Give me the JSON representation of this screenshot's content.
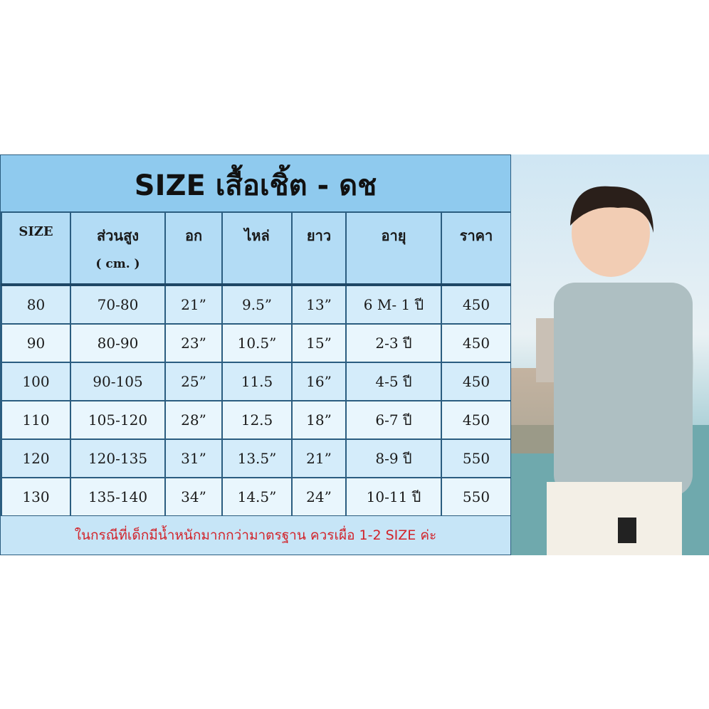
{
  "title": "SIZE เสื้อเชิ้ต - ดช",
  "headers": [
    {
      "label": "SIZE"
    },
    {
      "label": "ส่วนสูง",
      "sub": "( cm. )"
    },
    {
      "label": "อก"
    },
    {
      "label": "ไหล่"
    },
    {
      "label": "ยาว"
    },
    {
      "label": "อายุ"
    },
    {
      "label": "ราคา"
    }
  ],
  "rows": [
    [
      "80",
      "70-80",
      "21”",
      "9.5”",
      "13”",
      "6 M- 1 ปี",
      "450"
    ],
    [
      "90",
      "80-90",
      "23”",
      "10.5”",
      "15”",
      "2-3 ปี",
      "450"
    ],
    [
      "100",
      "90-105",
      "25”",
      "11.5",
      "16”",
      "4-5 ปี",
      "450"
    ],
    [
      "110",
      "105-120",
      "28”",
      "12.5",
      "18”",
      "6-7 ปี",
      "450"
    ],
    [
      "120",
      "120-135",
      "31”",
      "13.5”",
      "21”",
      "8-9 ปี",
      "550"
    ],
    [
      "130",
      "135-140",
      "34”",
      "14.5”",
      "24”",
      "10-11 ปี",
      "550"
    ]
  ],
  "note": "ในกรณีที่เด็กมีน้ำหนักมากกว่ามาตรฐาน ควรเผื่อ 1-2 SIZE ค่ะ",
  "colors": {
    "header_band": "#8fcaee",
    "note_text": "#d2232a",
    "border": "#2b5d80"
  }
}
